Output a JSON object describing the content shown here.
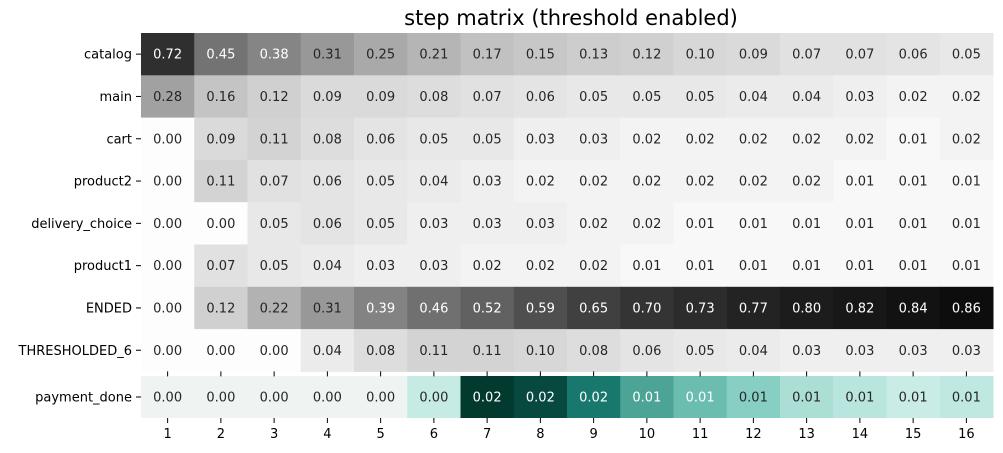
{
  "chart_data": {
    "type": "heatmap",
    "title": "step matrix (threshold enabled)",
    "x": [
      "1",
      "2",
      "3",
      "4",
      "5",
      "6",
      "7",
      "8",
      "9",
      "10",
      "11",
      "12",
      "13",
      "14",
      "15",
      "16"
    ],
    "rows": [
      "catalog",
      "main",
      "cart",
      "product2",
      "delivery_choice",
      "product1",
      "ENDED",
      "THRESHOLDED_6"
    ],
    "values": [
      [
        0.72,
        0.45,
        0.38,
        0.31,
        0.25,
        0.21,
        0.17,
        0.15,
        0.13,
        0.12,
        0.1,
        0.09,
        0.07,
        0.07,
        0.06,
        0.05
      ],
      [
        0.28,
        0.16,
        0.12,
        0.09,
        0.09,
        0.08,
        0.07,
        0.06,
        0.05,
        0.05,
        0.05,
        0.04,
        0.04,
        0.03,
        0.02,
        0.02
      ],
      [
        0.0,
        0.09,
        0.11,
        0.08,
        0.06,
        0.05,
        0.05,
        0.03,
        0.03,
        0.02,
        0.02,
        0.02,
        0.02,
        0.02,
        0.01,
        0.02
      ],
      [
        0.0,
        0.11,
        0.07,
        0.06,
        0.05,
        0.04,
        0.03,
        0.02,
        0.02,
        0.02,
        0.02,
        0.02,
        0.02,
        0.01,
        0.01,
        0.01
      ],
      [
        0.0,
        0.0,
        0.05,
        0.06,
        0.05,
        0.03,
        0.03,
        0.03,
        0.02,
        0.02,
        0.01,
        0.01,
        0.01,
        0.01,
        0.01,
        0.01
      ],
      [
        0.0,
        0.07,
        0.05,
        0.04,
        0.03,
        0.03,
        0.02,
        0.02,
        0.02,
        0.01,
        0.01,
        0.01,
        0.01,
        0.01,
        0.01,
        0.01
      ],
      [
        0.0,
        0.12,
        0.22,
        0.31,
        0.39,
        0.46,
        0.52,
        0.59,
        0.65,
        0.7,
        0.73,
        0.77,
        0.8,
        0.82,
        0.84,
        0.86
      ],
      [
        0.0,
        0.0,
        0.0,
        0.04,
        0.08,
        0.11,
        0.11,
        0.1,
        0.08,
        0.06,
        0.05,
        0.04,
        0.03,
        0.03,
        0.03,
        0.03
      ]
    ],
    "target_rows": [
      "payment_done"
    ],
    "target_values": [
      [
        0.0,
        0.0,
        0.0,
        0.0,
        0.0,
        0.0,
        0.02,
        0.02,
        0.02,
        0.01,
        0.01,
        0.01,
        0.01,
        0.01,
        0.01,
        0.01
      ]
    ],
    "target_shades": [
      [
        0.04,
        0.04,
        0.04,
        0.04,
        0.04,
        0.26,
        1.0,
        0.93,
        0.72,
        0.6,
        0.53,
        0.45,
        0.34,
        0.3,
        0.24,
        0.28
      ]
    ],
    "colormap_main": "greys",
    "colormap_target": "teal",
    "grid": false
  }
}
